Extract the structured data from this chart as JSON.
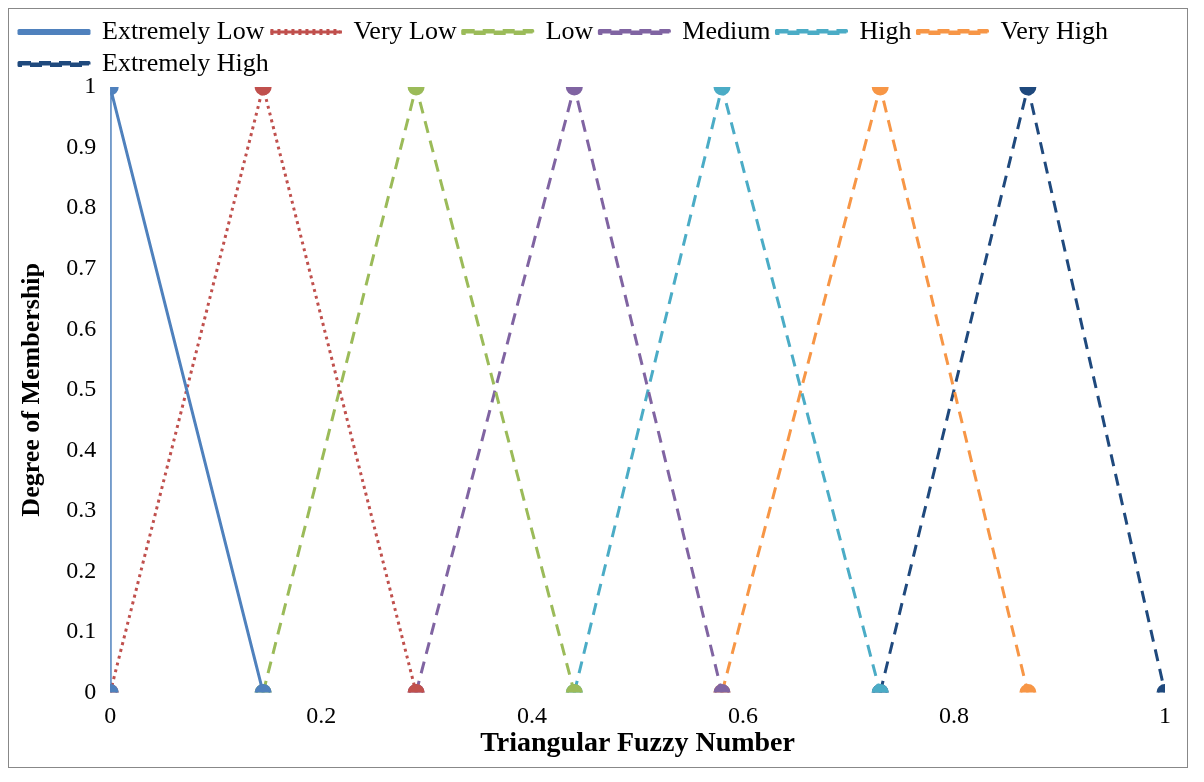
{
  "chart_data": {
    "type": "line",
    "xlabel": "Triangular Fuzzy Number",
    "ylabel": "Degree of Membership",
    "xlim": [
      0,
      1
    ],
    "xticks": [
      0,
      0.2,
      0.4,
      0.6,
      0.8,
      1
    ],
    "ylim": [
      0,
      1
    ],
    "yticks": [
      0,
      0.1,
      0.2,
      0.3,
      0.4,
      0.5,
      0.6,
      0.7,
      0.8,
      0.9,
      1
    ],
    "grid": false,
    "legend": "top",
    "marker": "circle",
    "series": [
      {
        "name": "Extremely Low",
        "color": "#4f81bd",
        "line_style": "solid",
        "x": [
          0,
          0,
          0.145
        ],
        "values": [
          0,
          1,
          0
        ]
      },
      {
        "name": "Very Low",
        "color": "#c0504d",
        "line_style": "dotted",
        "x": [
          0,
          0.145,
          0.29
        ],
        "values": [
          0,
          1,
          0
        ]
      },
      {
        "name": "Low",
        "color": "#9bbb59",
        "line_style": "dashed",
        "x": [
          0.145,
          0.29,
          0.44
        ],
        "values": [
          0,
          1,
          0
        ]
      },
      {
        "name": "Medium",
        "color": "#8064a2",
        "line_style": "dashed",
        "x": [
          0.29,
          0.44,
          0.58
        ],
        "values": [
          0,
          1,
          0
        ]
      },
      {
        "name": "High",
        "color": "#4bacc6",
        "line_style": "dashed",
        "x": [
          0.44,
          0.58,
          0.73
        ],
        "values": [
          0,
          1,
          0
        ]
      },
      {
        "name": "Very High",
        "color": "#f79646",
        "line_style": "dashed",
        "x": [
          0.58,
          0.73,
          0.87
        ],
        "values": [
          0,
          1,
          0
        ]
      },
      {
        "name": "Extremely High",
        "color": "#1f497d",
        "line_style": "dashed",
        "x": [
          0.73,
          0.87,
          1
        ],
        "values": [
          0,
          1,
          0
        ]
      }
    ]
  }
}
